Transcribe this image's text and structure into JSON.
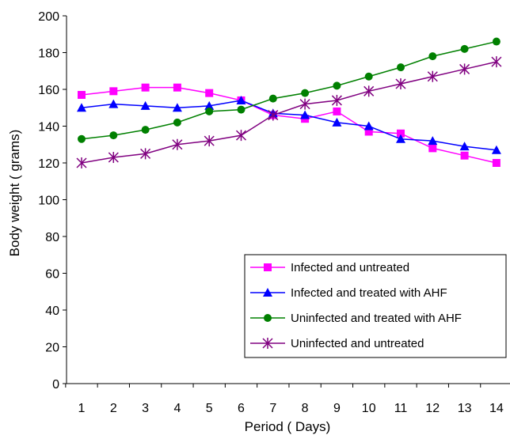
{
  "chart_data": {
    "type": "line",
    "title": "",
    "xlabel": "Period ( Days)",
    "ylabel": "Body weight ( grams)",
    "x": [
      1,
      2,
      3,
      4,
      5,
      6,
      7,
      8,
      9,
      10,
      11,
      12,
      13,
      14
    ],
    "x_tick_labels": [
      "1",
      "2",
      "3",
      "4",
      "5",
      "6",
      "7",
      "8",
      "9",
      "10",
      "11",
      "12",
      "13",
      "14"
    ],
    "ylim": [
      0,
      200
    ],
    "y_ticks": [
      0,
      20,
      40,
      60,
      80,
      100,
      120,
      140,
      160,
      180,
      200
    ],
    "y_tick_labels": [
      "0",
      "20",
      "40",
      "60",
      "80",
      "100",
      "120",
      "140",
      "160",
      "180",
      "200"
    ],
    "grid": false,
    "legend_position": "bottom-right",
    "series": [
      {
        "name": "Infected and untreated",
        "color": "#FF00FF",
        "marker": "square",
        "values": [
          157,
          159,
          161,
          161,
          158,
          154,
          146,
          144,
          148,
          137,
          136,
          128,
          124,
          120
        ]
      },
      {
        "name": "Infected and treated with AHF",
        "color": "#0000FF",
        "marker": "triangle",
        "values": [
          150,
          152,
          151,
          150,
          151,
          154,
          147,
          146,
          142,
          140,
          133,
          132,
          129,
          127
        ]
      },
      {
        "name": "Uninfected and treated with AHF",
        "color": "#008000",
        "marker": "circle",
        "values": [
          133,
          135,
          138,
          142,
          148,
          149,
          155,
          158,
          162,
          167,
          172,
          178,
          182,
          186
        ]
      },
      {
        "name": "Uninfected and untreated",
        "color": "#800080",
        "marker": "star",
        "values": [
          120,
          123,
          125,
          130,
          132,
          135,
          146,
          152,
          154,
          159,
          163,
          167,
          171,
          175
        ]
      }
    ]
  }
}
